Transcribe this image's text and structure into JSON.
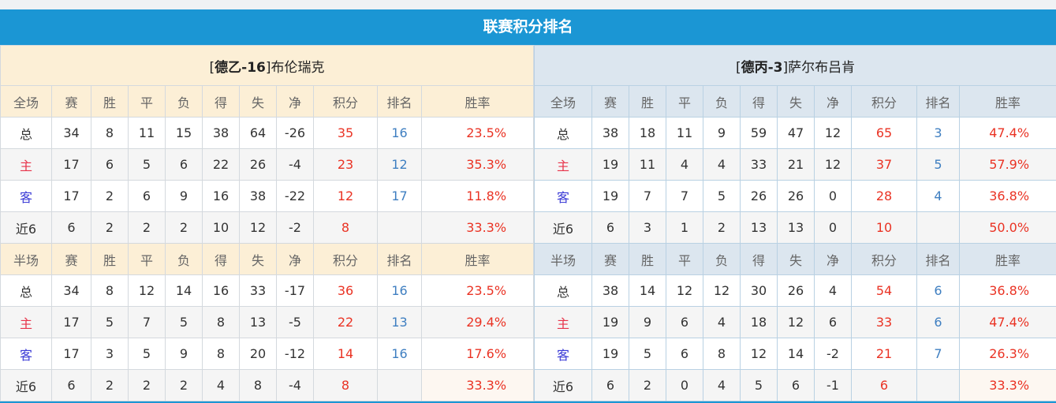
{
  "title": "联赛积分排名",
  "columns_full": [
    "全场",
    "赛",
    "胜",
    "平",
    "负",
    "得",
    "失",
    "净",
    "积分",
    "排名",
    "胜率"
  ],
  "columns_half": [
    "半场",
    "赛",
    "胜",
    "平",
    "负",
    "得",
    "失",
    "净",
    "积分",
    "排名",
    "胜率"
  ],
  "colors": {
    "accent": "#1b96d4",
    "points": "#ea3324",
    "rank": "#3f7fc1"
  },
  "teams": [
    {
      "prefix": "[",
      "league": "德乙-16",
      "suffix": "]",
      "name": "布伦瑞克",
      "full": [
        [
          "总",
          "34",
          "8",
          "11",
          "15",
          "38",
          "64",
          "-26",
          "35",
          "16",
          "23.5%"
        ],
        [
          "主",
          "17",
          "6",
          "5",
          "6",
          "22",
          "26",
          "-4",
          "23",
          "12",
          "35.3%"
        ],
        [
          "客",
          "17",
          "2",
          "6",
          "9",
          "16",
          "38",
          "-22",
          "12",
          "17",
          "11.8%"
        ],
        [
          "近6",
          "6",
          "2",
          "2",
          "2",
          "10",
          "12",
          "-2",
          "8",
          "",
          "33.3%"
        ]
      ],
      "half": [
        [
          "总",
          "34",
          "8",
          "12",
          "14",
          "16",
          "33",
          "-17",
          "36",
          "16",
          "23.5%"
        ],
        [
          "主",
          "17",
          "5",
          "7",
          "5",
          "8",
          "13",
          "-5",
          "22",
          "13",
          "29.4%"
        ],
        [
          "客",
          "17",
          "3",
          "5",
          "9",
          "8",
          "20",
          "-12",
          "14",
          "16",
          "17.6%"
        ],
        [
          "近6",
          "6",
          "2",
          "2",
          "2",
          "4",
          "8",
          "-4",
          "8",
          "",
          "33.3%"
        ]
      ]
    },
    {
      "prefix": "[",
      "league": "德丙-3",
      "suffix": "]",
      "name": "萨尔布吕肯",
      "full": [
        [
          "总",
          "38",
          "18",
          "11",
          "9",
          "59",
          "47",
          "12",
          "65",
          "3",
          "47.4%"
        ],
        [
          "主",
          "19",
          "11",
          "4",
          "4",
          "33",
          "21",
          "12",
          "37",
          "5",
          "57.9%"
        ],
        [
          "客",
          "19",
          "7",
          "7",
          "5",
          "26",
          "26",
          "0",
          "28",
          "4",
          "36.8%"
        ],
        [
          "近6",
          "6",
          "3",
          "1",
          "2",
          "13",
          "13",
          "0",
          "10",
          "",
          "50.0%"
        ]
      ],
      "half": [
        [
          "总",
          "38",
          "14",
          "12",
          "12",
          "30",
          "26",
          "4",
          "54",
          "6",
          "36.8%"
        ],
        [
          "主",
          "19",
          "9",
          "6",
          "4",
          "18",
          "12",
          "6",
          "33",
          "6",
          "47.4%"
        ],
        [
          "客",
          "19",
          "5",
          "6",
          "8",
          "12",
          "14",
          "-2",
          "21",
          "7",
          "26.3%"
        ],
        [
          "近6",
          "6",
          "2",
          "0",
          "4",
          "5",
          "6",
          "-1",
          "6",
          "",
          "33.3%"
        ]
      ]
    }
  ]
}
